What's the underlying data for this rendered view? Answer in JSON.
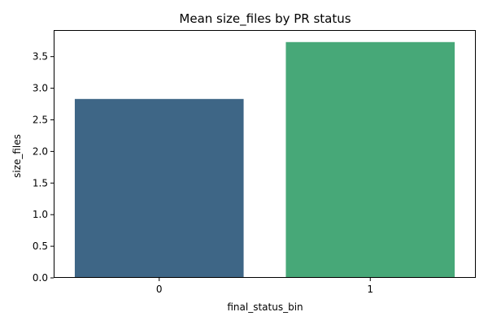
{
  "chart_data": {
    "type": "bar",
    "title": "Mean size_files by PR status",
    "xlabel": "final_status_bin",
    "ylabel": "size_files",
    "categories": [
      "0",
      "1"
    ],
    "values": [
      2.83,
      3.73
    ],
    "colors": [
      "#3e6686",
      "#47a878"
    ],
    "ylim": [
      0,
      3.92
    ],
    "yticks": [
      0.0,
      0.5,
      1.0,
      1.5,
      2.0,
      2.5,
      3.0,
      3.5
    ],
    "ytick_labels": [
      "0.0",
      "0.5",
      "1.0",
      "1.5",
      "2.0",
      "2.5",
      "3.0",
      "3.5"
    ],
    "grid": false,
    "legend": "none"
  }
}
